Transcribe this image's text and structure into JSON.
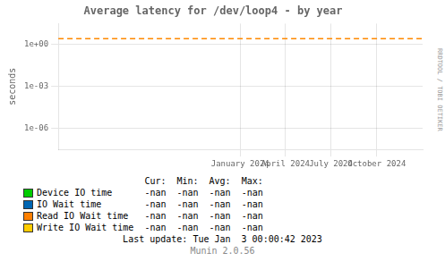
{
  "chart_data": {
    "type": "line",
    "title": "Average latency for /dev/loop4 - by year",
    "y_label": "seconds",
    "x": [
      1672531200,
      1735689600
    ],
    "series": [
      {
        "name": "Device IO time",
        "color": "#00cc00",
        "values": [
          null,
          null
        ],
        "summary": [
          "-nan",
          "-nan",
          "-nan",
          "-nan"
        ]
      },
      {
        "name": "IO Wait time",
        "color": "#0066b3",
        "values": [
          null,
          null
        ],
        "summary": [
          "-nan",
          "-nan",
          "-nan",
          "-nan"
        ]
      },
      {
        "name": "Read IO Wait time",
        "color": "#ff8000",
        "values": [
          null,
          null
        ],
        "summary": [
          "-nan",
          "-nan",
          "-nan",
          "-nan"
        ]
      },
      {
        "name": "Write IO Wait time",
        "color": "#ffcc00",
        "values": [
          null,
          null
        ],
        "summary": [
          "-nan",
          "-nan",
          "-nan",
          "-nan"
        ]
      },
      {
        "color": "#ff8800",
        "line_style": "dashed",
        "values": [
          2.5,
          2.5
        ]
      }
    ],
    "xlim": [
      1672531200,
      1735689600
    ],
    "xticks": [
      {
        "value": 1704067200,
        "label": "January 2024"
      },
      {
        "value": 1711929600,
        "label": "April 2024"
      },
      {
        "value": 1719792000,
        "label": "July 2024"
      },
      {
        "value": 1727740800,
        "label": "October 2024"
      }
    ],
    "ylim": [
      3e-08,
      30
    ],
    "yticks": [
      {
        "value": 1e-06,
        "label": "1e-06"
      },
      {
        "value": 0.001,
        "label": "1e-03"
      },
      {
        "value": 1,
        "label": "1e+00"
      }
    ],
    "log": "y",
    "grid": true,
    "legend": "bottom",
    "summary_headers": [
      "Cur:",
      "Min:",
      "Avg:",
      "Max:"
    ],
    "annotations": [
      "Last update: Tue Jan  3 00:00:42 2023",
      "Munin 2.0.56"
    ],
    "watermark": "RRDTOOL / TOBI OETIKER"
  }
}
